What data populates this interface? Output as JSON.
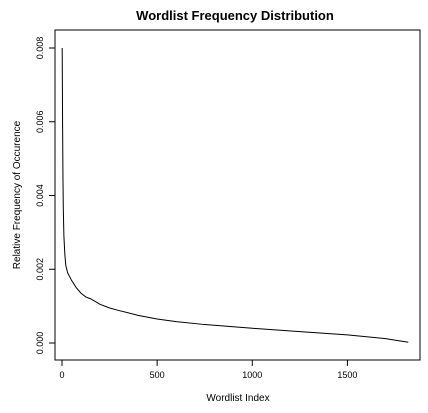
{
  "chart_data": {
    "type": "line",
    "title": "Wordlist Frequency Distribution",
    "xlabel": "Wordlist Index",
    "ylabel": "Relative Frequency of Occurence",
    "xlim": [
      0,
      1850
    ],
    "ylim": [
      0,
      0.008
    ],
    "x_ticks": [
      0,
      500,
      1000,
      1500
    ],
    "x_tick_labels": [
      "0",
      "500",
      "1000",
      "1500"
    ],
    "y_ticks": [
      0,
      0.002,
      0.004,
      0.006,
      0.008
    ],
    "y_tick_labels": [
      "0.000",
      "0.002",
      "0.004",
      "0.006",
      "0.008"
    ],
    "grid": false,
    "line_color": "#000000",
    "series": [
      {
        "x": [
          1,
          3,
          5,
          7,
          10,
          15,
          20,
          30,
          50,
          75,
          100,
          125,
          150,
          200,
          250,
          300,
          400,
          500,
          600,
          750,
          1000,
          1250,
          1500,
          1700,
          1820
        ],
        "y": [
          0.008,
          0.006,
          0.0045,
          0.0036,
          0.0029,
          0.0024,
          0.0021,
          0.0019,
          0.0017,
          0.0015,
          0.00135,
          0.00125,
          0.0012,
          0.00105,
          0.00095,
          0.00088,
          0.00075,
          0.00065,
          0.00058,
          0.0005,
          0.0004,
          0.00031,
          0.00022,
          0.00012,
          2e-05
        ]
      }
    ]
  }
}
